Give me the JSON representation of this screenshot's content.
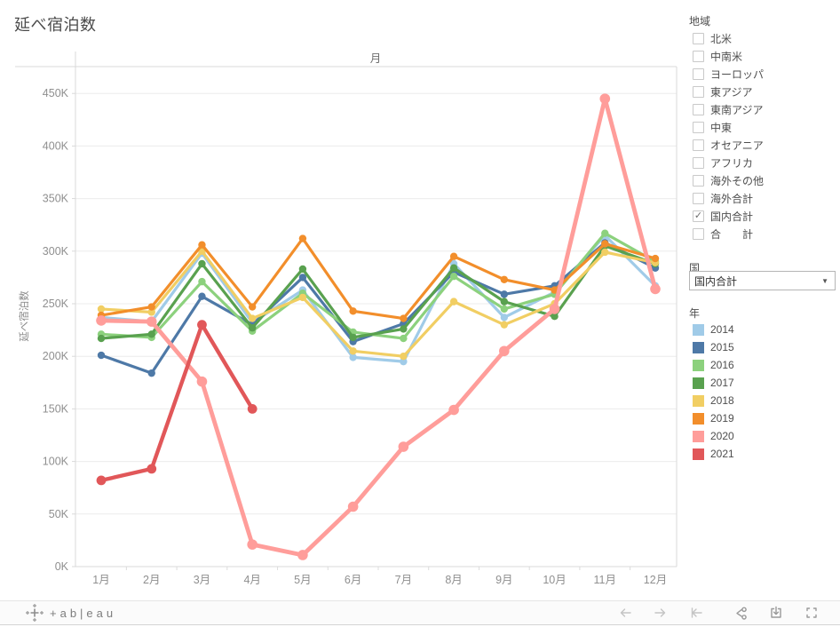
{
  "title": "延べ宿泊数",
  "filters": {
    "region": {
      "label": "地域",
      "items": [
        {
          "label": "北米",
          "checked": false
        },
        {
          "label": "中南米",
          "checked": false
        },
        {
          "label": "ヨーロッパ",
          "checked": false
        },
        {
          "label": "東アジア",
          "checked": false
        },
        {
          "label": "東南アジア",
          "checked": false
        },
        {
          "label": "中東",
          "checked": false
        },
        {
          "label": "オセアニア",
          "checked": false
        },
        {
          "label": "アフリカ",
          "checked": false
        },
        {
          "label": "海外その他",
          "checked": false
        },
        {
          "label": "海外合計",
          "checked": false
        },
        {
          "label": "国内合計",
          "checked": true
        },
        {
          "label": "合　　計",
          "checked": false
        }
      ]
    },
    "country": {
      "label": "国",
      "value": "国内合計"
    },
    "year_legend": {
      "label": "年",
      "items": [
        {
          "label": "2014",
          "color": "#A0CBE8"
        },
        {
          "label": "2015",
          "color": "#4E79A7"
        },
        {
          "label": "2016",
          "color": "#8CD17D"
        },
        {
          "label": "2017",
          "color": "#59A14F"
        },
        {
          "label": "2018",
          "color": "#F1CE63"
        },
        {
          "label": "2019",
          "color": "#F28E2B"
        },
        {
          "label": "2020",
          "color": "#FF9D9A"
        },
        {
          "label": "2021",
          "color": "#E15759"
        }
      ]
    }
  },
  "chart_data": {
    "type": "line",
    "title": "延べ宿泊数",
    "x_axis_title": "月",
    "y_axis_title": "延べ宿泊数",
    "categories": [
      "1月",
      "2月",
      "3月",
      "4月",
      "5月",
      "6月",
      "7月",
      "8月",
      "9月",
      "10月",
      "11月",
      "12月"
    ],
    "y_tick_labels": [
      "0K",
      "50K",
      "100K",
      "150K",
      "200K",
      "250K",
      "300K",
      "350K",
      "400K",
      "450K"
    ],
    "y_unit": "thousand nights (K)",
    "ylim": [
      0,
      475
    ],
    "grid": true,
    "legend_position": "right",
    "series": [
      {
        "name": "2014",
        "color": "#A0CBE8",
        "line_width": 3.2,
        "values": [
          237,
          233,
          298,
          232,
          263,
          199,
          195,
          288,
          237,
          261,
          315,
          267
        ]
      },
      {
        "name": "2015",
        "color": "#4E79A7",
        "line_width": 3.2,
        "values": [
          201,
          184,
          257,
          230,
          275,
          214,
          231,
          280,
          259,
          267,
          308,
          284
        ]
      },
      {
        "name": "2016",
        "color": "#8CD17D",
        "line_width": 3.2,
        "values": [
          221,
          218,
          271,
          224,
          260,
          223,
          217,
          276,
          245,
          259,
          317,
          290
        ]
      },
      {
        "name": "2017",
        "color": "#59A14F",
        "line_width": 3.2,
        "values": [
          217,
          221,
          288,
          227,
          283,
          218,
          226,
          284,
          252,
          238,
          305,
          288
        ]
      },
      {
        "name": "2018",
        "color": "#F1CE63",
        "line_width": 3.2,
        "values": [
          245,
          242,
          300,
          236,
          256,
          205,
          200,
          252,
          230,
          250,
          299,
          289
        ]
      },
      {
        "name": "2019",
        "color": "#F28E2B",
        "line_width": 3.2,
        "values": [
          239,
          247,
          306,
          247,
          312,
          243,
          236,
          295,
          273,
          263,
          307,
          293
        ]
      },
      {
        "name": "2020",
        "color": "#FF9D9A",
        "line_width": 4.8,
        "values": [
          234,
          233,
          176,
          21,
          11,
          57,
          114,
          149,
          205,
          245,
          445,
          264
        ]
      },
      {
        "name": "2021",
        "color": "#E15759",
        "line_width": 4.4,
        "values": [
          82,
          93,
          230,
          150,
          null,
          null,
          null,
          null,
          null,
          null,
          null,
          null
        ]
      }
    ]
  },
  "toolbar": {
    "logo_word": "+ab|eau",
    "icons": [
      "undo",
      "redo",
      "reset",
      "share",
      "download",
      "fullscreen"
    ]
  }
}
